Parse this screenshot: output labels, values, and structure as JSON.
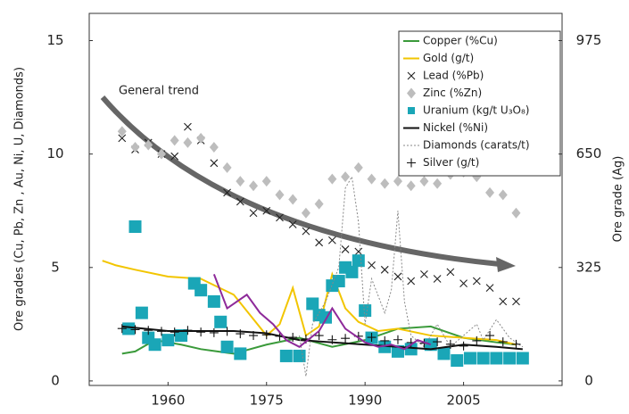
{
  "chart_data": {
    "type": "line",
    "xlabel": null,
    "ylabel": "Ore grades (Cu, Pb, Zn , Au, Ni, U, Diamonds)",
    "y2label": "Ore grade (Ag)",
    "annotation": "General trend",
    "xlim": [
      1948,
      2020
    ],
    "xticks": [
      1960,
      1975,
      1990,
      2005
    ],
    "ylim": [
      -0.2,
      16.2
    ],
    "yticks": [
      0,
      5,
      10,
      15
    ],
    "y2lim": [
      -13,
      1053
    ],
    "y2ticks": [
      0,
      325,
      650,
      975
    ],
    "series": [
      {
        "name": "Copper (%Cu)",
        "color": "#3a9a3a",
        "style": "line",
        "x": [
          1953,
          1955,
          1958,
          1962,
          1965,
          1970,
          1975,
          1980,
          1985,
          1990,
          1995,
          2000,
          2005,
          2010,
          2013
        ],
        "values": [
          1.2,
          1.3,
          1.8,
          1.6,
          1.4,
          1.2,
          1.6,
          1.9,
          1.5,
          1.8,
          2.3,
          2.4,
          1.9,
          1.7,
          1.6
        ]
      },
      {
        "name": "Gold (g/t)",
        "color": "#f2c500",
        "style": "line",
        "x": [
          1950,
          1952,
          1955,
          1960,
          1965,
          1970,
          1975,
          1977,
          1979,
          1981,
          1983,
          1985,
          1987,
          1989,
          1992,
          1995,
          2000,
          2005,
          2010,
          2013
        ],
        "values": [
          5.3,
          5.1,
          4.9,
          4.6,
          4.5,
          3.8,
          2.0,
          2.5,
          4.1,
          2.0,
          2.4,
          4.7,
          3.2,
          2.6,
          2.2,
          2.3,
          2.0,
          1.9,
          1.8,
          1.6
        ]
      },
      {
        "name": "Lead (%Pb)",
        "color": "#222222",
        "style": "x",
        "x": [
          1953,
          1955,
          1957,
          1959,
          1961,
          1963,
          1965,
          1967,
          1969,
          1971,
          1973,
          1975,
          1977,
          1979,
          1981,
          1983,
          1985,
          1987,
          1989,
          1991,
          1993,
          1995,
          1997,
          1999,
          2001,
          2003,
          2005,
          2007,
          2009,
          2011,
          2013
        ],
        "values": [
          10.7,
          10.2,
          10.5,
          10.0,
          9.9,
          11.2,
          10.6,
          9.6,
          8.3,
          7.9,
          7.4,
          7.5,
          7.2,
          6.9,
          6.6,
          6.1,
          6.2,
          5.8,
          5.7,
          5.1,
          4.9,
          4.6,
          4.4,
          4.7,
          4.5,
          4.8,
          4.3,
          4.4,
          4.1,
          3.5,
          3.5
        ]
      },
      {
        "name": "Zinc (%Zn)",
        "color": "#bdbdbd",
        "style": "diamond",
        "x": [
          1953,
          1955,
          1957,
          1959,
          1961,
          1963,
          1965,
          1967,
          1969,
          1971,
          1973,
          1975,
          1977,
          1979,
          1981,
          1983,
          1985,
          1987,
          1989,
          1991,
          1993,
          1995,
          1997,
          1999,
          2001,
          2003,
          2005,
          2007,
          2009,
          2011,
          2013
        ],
        "values": [
          11.0,
          10.3,
          10.4,
          10.0,
          10.6,
          10.5,
          10.7,
          10.3,
          9.4,
          8.8,
          8.6,
          8.8,
          8.2,
          8.0,
          7.4,
          7.8,
          8.9,
          9.0,
          9.4,
          8.9,
          8.7,
          8.8,
          8.6,
          8.8,
          8.7,
          9.1,
          9.2,
          9.0,
          8.3,
          8.2,
          7.4
        ]
      },
      {
        "name": "Uranium (kg/t U₃O₈)",
        "color": "#1aa6b7",
        "style": "square",
        "x": [
          1954,
          1955,
          1956,
          1957,
          1958,
          1960,
          1962,
          1964,
          1965,
          1967,
          1968,
          1969,
          1971,
          1978,
          1980,
          1982,
          1983,
          1984,
          1985,
          1986,
          1987,
          1988,
          1989,
          1990,
          1991,
          1993,
          1995,
          1997,
          2000,
          2002,
          2004,
          2006,
          2008,
          2010,
          2012,
          2014
        ],
        "values": [
          2.3,
          6.8,
          3.0,
          1.9,
          1.6,
          1.8,
          2.0,
          4.3,
          4.0,
          3.5,
          2.6,
          1.5,
          1.2,
          1.1,
          1.1,
          3.4,
          2.9,
          2.8,
          4.2,
          4.4,
          5.0,
          4.8,
          5.3,
          3.1,
          1.9,
          1.5,
          1.3,
          1.4,
          1.6,
          1.2,
          0.9,
          1.0,
          1.0,
          1.0,
          1.0,
          1.0
        ]
      },
      {
        "name": "Nickel (%Ni)",
        "color": "#111111",
        "style": "line",
        "x": [
          1953,
          1960,
          1965,
          1970,
          1975,
          1980,
          1985,
          1990,
          1995,
          2000,
          2005,
          2010,
          2014
        ],
        "values": [
          2.4,
          2.2,
          2.2,
          2.2,
          2.1,
          1.8,
          1.7,
          1.6,
          1.5,
          1.4,
          1.6,
          1.5,
          1.4
        ]
      },
      {
        "name": "Diamonds (carats/t)",
        "color": "#888888",
        "style": "dotted",
        "x": [
          1980,
          1981,
          1982,
          1984,
          1986,
          1987,
          1988,
          1989,
          1990,
          1991,
          1993,
          1994,
          1995,
          1996,
          1997,
          1999,
          2001,
          2003,
          2005,
          2007,
          2008,
          2010,
          2012,
          2014
        ],
        "values": [
          2.0,
          0.2,
          2.5,
          3.5,
          5.0,
          8.5,
          9.0,
          7.0,
          2.5,
          4.5,
          3.0,
          4.0,
          7.5,
          3.5,
          2.0,
          1.5,
          2.5,
          1.5,
          2.0,
          2.5,
          1.8,
          2.7,
          1.9,
          1.5
        ]
      },
      {
        "name": "Silver (g/t)",
        "color": "#111111",
        "style": "plus",
        "axis": "y2",
        "x": [
          1953,
          1955,
          1957,
          1959,
          1961,
          1963,
          1965,
          1967,
          1969,
          1971,
          1973,
          1975,
          1977,
          1979,
          1981,
          1983,
          1985,
          1987,
          1989,
          1991,
          1993,
          1995,
          1997,
          1999,
          2001,
          2003,
          2005,
          2007,
          2009,
          2011,
          2013
        ],
        "values": [
          150,
          147,
          145,
          142,
          140,
          145,
          140,
          138,
          142,
          135,
          130,
          132,
          128,
          125,
          120,
          130,
          118,
          122,
          128,
          125,
          115,
          118,
          110,
          108,
          112,
          105,
          100,
          115,
          130,
          112,
          105
        ]
      },
      {
        "color": "#8e2a9a",
        "style": "line",
        "x": [
          1967,
          1969,
          1972,
          1974,
          1976,
          1978,
          1980,
          1983,
          1985,
          1987,
          1990,
          1992,
          1994,
          1996,
          1998,
          2000
        ],
        "values": [
          4.7,
          3.2,
          3.8,
          3.0,
          2.5,
          1.8,
          1.5,
          2.2,
          3.2,
          2.3,
          1.7,
          1.5,
          1.6,
          1.4,
          1.8,
          1.6
        ]
      }
    ]
  }
}
